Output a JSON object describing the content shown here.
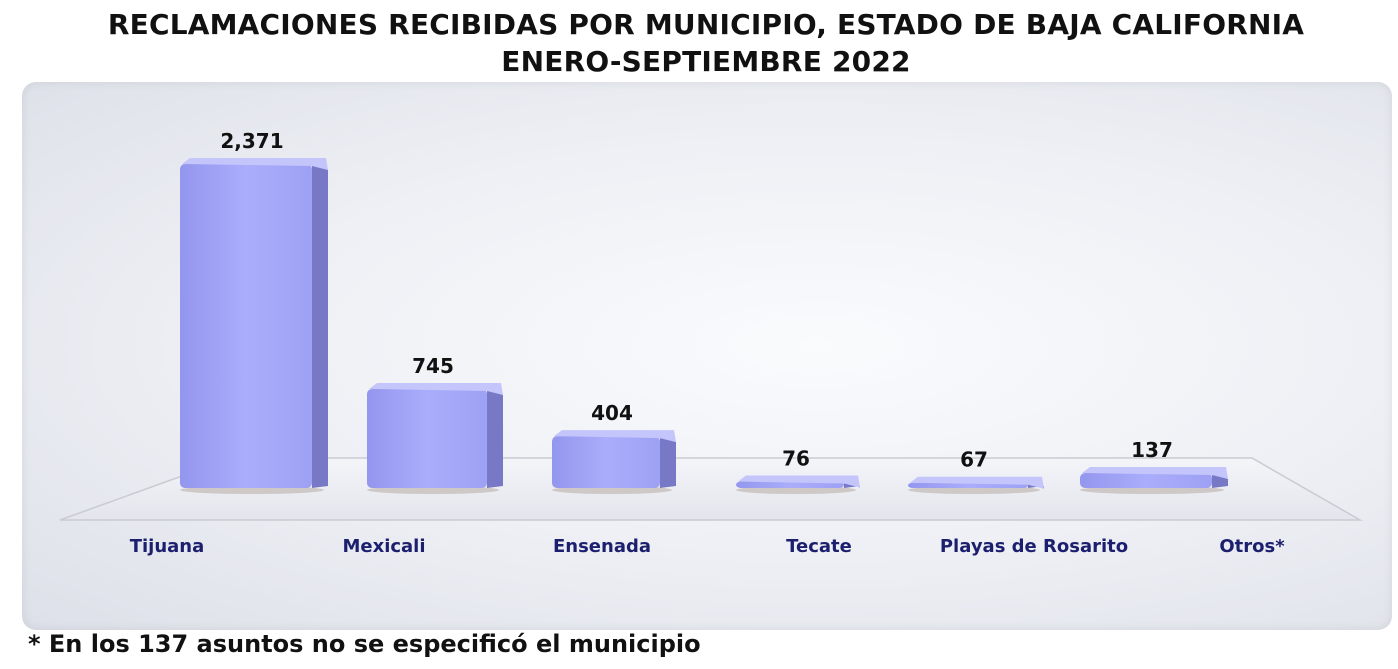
{
  "title_line1": "RECLAMACIONES RECIBIDAS POR MUNICIPIO, ESTADO DE BAJA CALIFORNIA",
  "title_line2": "ENERO-SEPTIEMBRE 2022",
  "footnote": "* En los 137 asuntos no se especificó el municipio",
  "colors": {
    "bar_front": "#a3a6f8",
    "bar_side": "#7779c6",
    "bar_top": "#c3c5fb",
    "category_text": "#1c1f6e"
  },
  "chart_data": {
    "type": "bar",
    "categories": [
      "Tijuana",
      "Mexicali",
      "Ensenada",
      "Tecate",
      "Playas de Rosarito",
      "Otros*"
    ],
    "values": [
      2371,
      745,
      404,
      76,
      67,
      137
    ],
    "value_labels": [
      "2,371",
      "745",
      "404",
      "76",
      "67",
      "137"
    ],
    "title": "RECLAMACIONES RECIBIDAS POR MUNICIPIO, ESTADO DE BAJA CALIFORNIA ENERO-SEPTIEMBRE 2022",
    "xlabel": "",
    "ylabel": "",
    "grid": false,
    "legend": "none",
    "style": "3d-bar"
  }
}
